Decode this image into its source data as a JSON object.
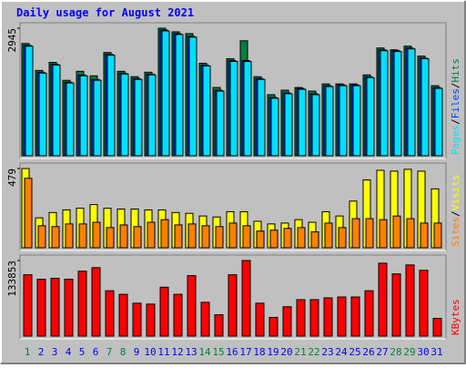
{
  "title": "Daily usage for August 2021",
  "legend_separator": "/",
  "chart_data": [
    {
      "type": "bar",
      "ylim": [
        0,
        2945
      ],
      "yticks": [
        2945
      ],
      "series": [
        {
          "name": "Hits",
          "color": "#008040",
          "values": [
            2592,
            1970,
            2157,
            1742,
            1950,
            1846,
            2385,
            1950,
            1825,
            1929,
            2945,
            2862,
            2820,
            2136,
            1576,
            2240,
            2655,
            1825,
            1410,
            1514,
            1576,
            1493,
            1659,
            1659,
            1659,
            1867,
            2489,
            2447,
            2530,
            2302,
            1618
          ]
        },
        {
          "name": "Files",
          "color": "#0040ff",
          "values": [
            2550,
            1928,
            2115,
            1700,
            1866,
            1762,
            2343,
            1907,
            1783,
            1887,
            2903,
            2820,
            2758,
            2094,
            1513,
            2198,
            2198,
            1783,
            1347,
            1451,
            1555,
            1430,
            1617,
            1638,
            1638,
            1824,
            2446,
            2426,
            2488,
            2260,
            1575
          ]
        },
        {
          "name": "Pages",
          "color": "#00e0ff",
          "values": [
            2530,
            1908,
            2095,
            1680,
            1846,
            1742,
            2323,
            1887,
            1763,
            1867,
            2883,
            2800,
            2738,
            2074,
            1493,
            2178,
            2178,
            1763,
            1327,
            1431,
            1535,
            1410,
            1597,
            1618,
            1618,
            1804,
            2426,
            2406,
            2468,
            2240,
            1555
          ]
        }
      ]
    },
    {
      "type": "bar",
      "ylim": [
        0,
        479
      ],
      "yticks": [
        479
      ],
      "series": [
        {
          "name": "Visits",
          "color": "#ffff00",
          "values": [
            479,
            181,
            213,
            229,
            239,
            261,
            239,
            234,
            234,
            229,
            229,
            213,
            208,
            192,
            186,
            218,
            218,
            160,
            144,
            149,
            170,
            154,
            218,
            192,
            282,
            410,
            468,
            463,
            474,
            463,
            356
          ]
        },
        {
          "name": "Sites",
          "color": "#ff8000",
          "values": [
            420,
            133,
            128,
            144,
            144,
            154,
            122,
            138,
            128,
            154,
            170,
            138,
            144,
            133,
            128,
            149,
            133,
            101,
            106,
            117,
            122,
            96,
            149,
            122,
            176,
            176,
            170,
            192,
            176,
            149,
            149
          ]
        }
      ]
    },
    {
      "type": "bar",
      "ylim": [
        0,
        133853
      ],
      "yticks": [
        133853
      ],
      "categories": [
        "1",
        "2",
        "3",
        "4",
        "5",
        "6",
        "7",
        "8",
        "9",
        "10",
        "11",
        "12",
        "13",
        "14",
        "15",
        "16",
        "17",
        "18",
        "19",
        "20",
        "21",
        "22",
        "23",
        "24",
        "25",
        "26",
        "27",
        "28",
        "29",
        "30",
        "31"
      ],
      "category_colors": [
        "#008040",
        "#0000ff",
        "#0000ff",
        "#0000ff",
        "#0000ff",
        "#0000ff",
        "#008040",
        "#008040",
        "#0000ff",
        "#0000ff",
        "#0000ff",
        "#0000ff",
        "#0000ff",
        "#008040",
        "#008040",
        "#0000ff",
        "#0000ff",
        "#0000ff",
        "#0000ff",
        "#0000ff",
        "#008040",
        "#008040",
        "#0000ff",
        "#0000ff",
        "#0000ff",
        "#0000ff",
        "#0000ff",
        "#008040",
        "#008040",
        "#0000ff",
        "#0000ff"
      ],
      "series": [
        {
          "name": "KBytes",
          "color": "#ff0000",
          "values": [
            108650,
            100780,
            102360,
            100780,
            114950,
            121250,
            80310,
            74010,
            58260,
            56690,
            86610,
            74010,
            107080,
            59840,
            37790,
            108650,
            133853,
            58260,
            33070,
            51970,
            64560,
            64560,
            67710,
            69290,
            69290,
            80310,
            129130,
            110230,
            125980,
            116530,
            31490
          ]
        }
      ]
    }
  ]
}
